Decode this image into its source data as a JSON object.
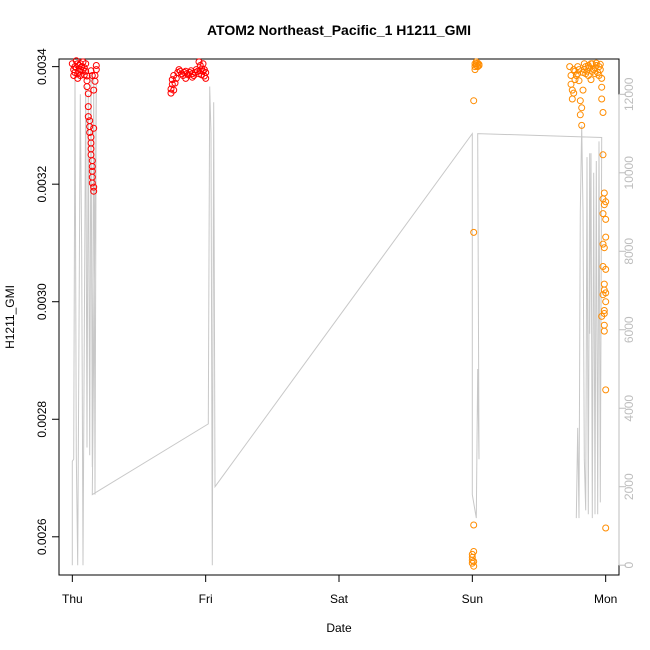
{
  "chart_data": {
    "type": "scatter",
    "title": "ATOM2 Northeast_Pacific_1 H1211_GMI",
    "xlabel": "Date",
    "ylabel": "H1211_GMI",
    "xlim": [
      -0.1,
      4.1
    ],
    "ylim": [
      0.002535,
      0.003413
    ],
    "y2lim": [
      -250,
      12900
    ],
    "x_ticks": [
      {
        "value": 0,
        "label": "Thu"
      },
      {
        "value": 1,
        "label": "Fri"
      },
      {
        "value": 2,
        "label": "Sat"
      },
      {
        "value": 3,
        "label": "Sun"
      },
      {
        "value": 4,
        "label": "Mon"
      }
    ],
    "y_ticks": [
      {
        "value": 0.0026,
        "label": "0.0026"
      },
      {
        "value": 0.0028,
        "label": "0.0028"
      },
      {
        "value": 0.003,
        "label": "0.0030"
      },
      {
        "value": 0.0032,
        "label": "0.0032"
      },
      {
        "value": 0.0034,
        "label": "0.0034"
      }
    ],
    "y2_ticks": [
      {
        "value": 0,
        "label": "0"
      },
      {
        "value": 2000,
        "label": "2000"
      },
      {
        "value": 4000,
        "label": "4000"
      },
      {
        "value": 6000,
        "label": "6000"
      },
      {
        "value": 8000,
        "label": "8000"
      },
      {
        "value": 10000,
        "label": "10000"
      },
      {
        "value": 12000,
        "label": "12000"
      }
    ],
    "grid": false,
    "series": [
      {
        "color": "#ff0000",
        "marker": "open-circle",
        "points": [
          [
            0.0,
            0.003405
          ],
          [
            0.01,
            0.003395
          ],
          [
            0.01,
            0.003385
          ],
          [
            0.02,
            0.00339
          ],
          [
            0.02,
            0.0034
          ],
          [
            0.03,
            0.00341
          ],
          [
            0.03,
            0.003398
          ],
          [
            0.04,
            0.003388
          ],
          [
            0.04,
            0.00338
          ],
          [
            0.05,
            0.003392
          ],
          [
            0.05,
            0.003402
          ],
          [
            0.06,
            0.003395
          ],
          [
            0.06,
            0.003385
          ],
          [
            0.07,
            0.0034
          ],
          [
            0.08,
            0.003408
          ],
          [
            0.08,
            0.003394
          ],
          [
            0.09,
            0.003386
          ],
          [
            0.09,
            0.003398
          ],
          [
            0.1,
            0.003405
          ],
          [
            0.1,
            0.003392
          ],
          [
            0.11,
            0.003384
          ],
          [
            0.11,
            0.003376
          ],
          [
            0.11,
            0.003366
          ],
          [
            0.12,
            0.003354
          ],
          [
            0.12,
            0.003332
          ],
          [
            0.12,
            0.003315
          ],
          [
            0.13,
            0.003308
          ],
          [
            0.13,
            0.003298
          ],
          [
            0.13,
            0.003288
          ],
          [
            0.14,
            0.00328
          ],
          [
            0.14,
            0.00327
          ],
          [
            0.14,
            0.00326
          ],
          [
            0.14,
            0.00325
          ],
          [
            0.15,
            0.00324
          ],
          [
            0.15,
            0.00323
          ],
          [
            0.15,
            0.003222
          ],
          [
            0.15,
            0.003212
          ],
          [
            0.15,
            0.003202
          ],
          [
            0.16,
            0.003195
          ],
          [
            0.16,
            0.003188
          ],
          [
            0.16,
            0.003295
          ],
          [
            0.16,
            0.00336
          ],
          [
            0.17,
            0.003375
          ],
          [
            0.17,
            0.003385
          ],
          [
            0.18,
            0.003395
          ],
          [
            0.18,
            0.003402
          ],
          [
            0.14,
            0.003393
          ],
          [
            0.15,
            0.003385
          ],
          [
            0.06,
            0.003405
          ],
          [
            0.04,
            0.003405
          ]
        ]
      },
      {
        "color": "#ff0000",
        "marker": "open-circle",
        "points": [
          [
            0.74,
            0.003355
          ],
          [
            0.74,
            0.003362
          ],
          [
            0.75,
            0.00337
          ],
          [
            0.75,
            0.003378
          ],
          [
            0.76,
            0.003385
          ],
          [
            0.76,
            0.00336
          ],
          [
            0.77,
            0.003372
          ],
          [
            0.78,
            0.00338
          ],
          [
            0.79,
            0.00339
          ],
          [
            0.8,
            0.003395
          ],
          [
            0.81,
            0.003392
          ],
          [
            0.82,
            0.003388
          ],
          [
            0.83,
            0.003385
          ],
          [
            0.84,
            0.00339
          ],
          [
            0.85,
            0.003392
          ],
          [
            0.86,
            0.003388
          ],
          [
            0.87,
            0.003386
          ],
          [
            0.88,
            0.00339
          ],
          [
            0.89,
            0.003393
          ],
          [
            0.9,
            0.003388
          ],
          [
            0.91,
            0.003385
          ],
          [
            0.92,
            0.00339
          ],
          [
            0.93,
            0.003395
          ],
          [
            0.94,
            0.003392
          ],
          [
            0.95,
            0.003388
          ],
          [
            0.95,
            0.003408
          ],
          [
            0.96,
            0.003402
          ],
          [
            0.96,
            0.003393
          ],
          [
            0.97,
            0.003386
          ],
          [
            0.97,
            0.003396
          ],
          [
            0.98,
            0.003405
          ],
          [
            0.98,
            0.003392
          ],
          [
            0.99,
            0.003384
          ],
          [
            0.99,
            0.003395
          ],
          [
            1.0,
            0.00339
          ],
          [
            1.0,
            0.00338
          ],
          [
            0.9,
            0.003382
          ],
          [
            0.85,
            0.00338
          ]
        ]
      },
      {
        "color": "#ff8c00",
        "marker": "open-circle",
        "points": [
          [
            3.0,
            0.002555
          ],
          [
            3.0,
            0.00256
          ],
          [
            3.0,
            0.002565
          ],
          [
            3.0,
            0.00257
          ],
          [
            3.01,
            0.00255
          ],
          [
            3.01,
            0.002575
          ],
          [
            3.01,
            0.002558
          ],
          [
            3.01,
            0.00262
          ],
          [
            3.01,
            0.003118
          ],
          [
            3.01,
            0.003342
          ],
          [
            3.02,
            0.003395
          ],
          [
            3.02,
            0.0034
          ],
          [
            3.02,
            0.003405
          ],
          [
            3.03,
            0.003408
          ],
          [
            3.03,
            0.003402
          ],
          [
            3.03,
            0.003405
          ],
          [
            3.04,
            0.0034
          ],
          [
            3.04,
            0.003406
          ],
          [
            3.05,
            0.003404
          ],
          [
            3.05,
            0.003402
          ]
        ]
      },
      {
        "color": "#ff8c00",
        "marker": "open-circle",
        "points": [
          [
            3.73,
            0.0034
          ],
          [
            3.74,
            0.003385
          ],
          [
            3.74,
            0.00337
          ],
          [
            3.75,
            0.00336
          ],
          [
            3.75,
            0.003345
          ],
          [
            3.76,
            0.003355
          ],
          [
            3.76,
            0.003395
          ],
          [
            3.77,
            0.003378
          ],
          [
            3.77,
            0.003392
          ],
          [
            3.78,
            0.003385
          ],
          [
            3.79,
            0.0034
          ],
          [
            3.79,
            0.003388
          ],
          [
            3.8,
            0.003395
          ],
          [
            3.8,
            0.003376
          ],
          [
            3.81,
            0.003342
          ],
          [
            3.81,
            0.003318
          ],
          [
            3.82,
            0.0033
          ],
          [
            3.82,
            0.00333
          ],
          [
            3.83,
            0.00336
          ],
          [
            3.83,
            0.00339
          ],
          [
            3.84,
            0.003405
          ],
          [
            3.84,
            0.003395
          ],
          [
            3.85,
            0.003388
          ],
          [
            3.85,
            0.0034
          ],
          [
            3.86,
            0.003392
          ],
          [
            3.87,
            0.003402
          ],
          [
            3.87,
            0.003385
          ],
          [
            3.88,
            0.003398
          ],
          [
            3.89,
            0.003405
          ],
          [
            3.89,
            0.003378
          ],
          [
            3.9,
            0.003392
          ],
          [
            3.9,
            0.003405
          ],
          [
            3.91,
            0.003395
          ],
          [
            3.92,
            0.003388
          ],
          [
            3.92,
            0.003398
          ],
          [
            3.93,
            0.003406
          ],
          [
            3.93,
            0.003402
          ],
          [
            3.94,
            0.00339
          ],
          [
            3.95,
            0.003385
          ],
          [
            3.95,
            0.0034
          ],
          [
            3.96,
            0.003404
          ],
          [
            3.96,
            0.003395
          ],
          [
            3.97,
            0.00338
          ],
          [
            3.97,
            0.003365
          ],
          [
            3.97,
            0.003345
          ],
          [
            3.98,
            0.003322
          ],
          [
            3.98,
            0.00325
          ],
          [
            3.98,
            0.00315
          ],
          [
            3.98,
            0.003098
          ],
          [
            3.98,
            0.00306
          ],
          [
            3.99,
            0.00302
          ],
          [
            3.99,
            0.00298
          ],
          [
            3.99,
            0.00296
          ],
          [
            3.99,
            0.002985
          ],
          [
            3.99,
            0.00303
          ],
          [
            3.99,
            0.003092
          ],
          [
            4.0,
            0.00314
          ],
          [
            4.0,
            0.00317
          ],
          [
            4.0,
            0.00311
          ],
          [
            4.0,
            0.003055
          ],
          [
            4.0,
            0.003
          ],
          [
            4.0,
            0.00285
          ],
          [
            4.0,
            0.002615
          ],
          [
            3.99,
            0.003185
          ],
          [
            3.98,
            0.003175
          ],
          [
            3.99,
            0.003165
          ],
          [
            3.98,
            0.003012
          ],
          [
            3.97,
            0.002975
          ],
          [
            3.99,
            0.00295
          ],
          [
            4.0,
            0.003015
          ]
        ]
      },
      {
        "color": "#c8c8c8",
        "marker": "line",
        "axis": "right",
        "points": [
          [
            0.0,
            0
          ],
          [
            0.0,
            2650
          ],
          [
            0.01,
            2700
          ],
          [
            0.02,
            12500
          ],
          [
            0.03,
            2800
          ],
          [
            0.04,
            0
          ],
          [
            0.06,
            12000
          ],
          [
            0.07,
            8000
          ],
          [
            0.08,
            0
          ],
          [
            0.1,
            12200
          ],
          [
            0.11,
            3000
          ],
          [
            0.12,
            12000
          ],
          [
            0.13,
            2800
          ],
          [
            0.14,
            12500
          ],
          [
            0.15,
            2500
          ],
          [
            0.16,
            12400
          ],
          [
            0.17,
            1800
          ],
          [
            0.18,
            12300
          ],
          [
            0.15,
            1800
          ],
          [
            1.02,
            3600
          ],
          [
            1.03,
            12200
          ],
          [
            1.04,
            11000
          ],
          [
            1.05,
            0
          ],
          [
            1.06,
            11800
          ],
          [
            1.07,
            2000
          ],
          [
            3.0,
            11000
          ],
          [
            3.0,
            1800
          ],
          [
            3.03,
            1200
          ],
          [
            3.04,
            5000
          ],
          [
            3.05,
            2700
          ],
          [
            3.04,
            11000
          ],
          [
            3.97,
            10900
          ],
          [
            3.96,
            1600
          ],
          [
            3.95,
            10800
          ],
          [
            3.94,
            1300
          ],
          [
            3.93,
            10300
          ],
          [
            3.92,
            1300
          ],
          [
            3.91,
            10000
          ],
          [
            3.9,
            1200
          ],
          [
            3.89,
            10500
          ],
          [
            3.88,
            5900
          ],
          [
            3.88,
            10500
          ],
          [
            3.87,
            1300
          ],
          [
            3.86,
            10400
          ],
          [
            3.85,
            1400
          ],
          [
            3.84,
            2700
          ],
          [
            3.83,
            9000
          ],
          [
            3.82,
            11200
          ],
          [
            3.81,
            9000
          ],
          [
            3.8,
            1200
          ],
          [
            3.79,
            3500
          ],
          [
            3.78,
            1200
          ]
        ]
      }
    ]
  }
}
